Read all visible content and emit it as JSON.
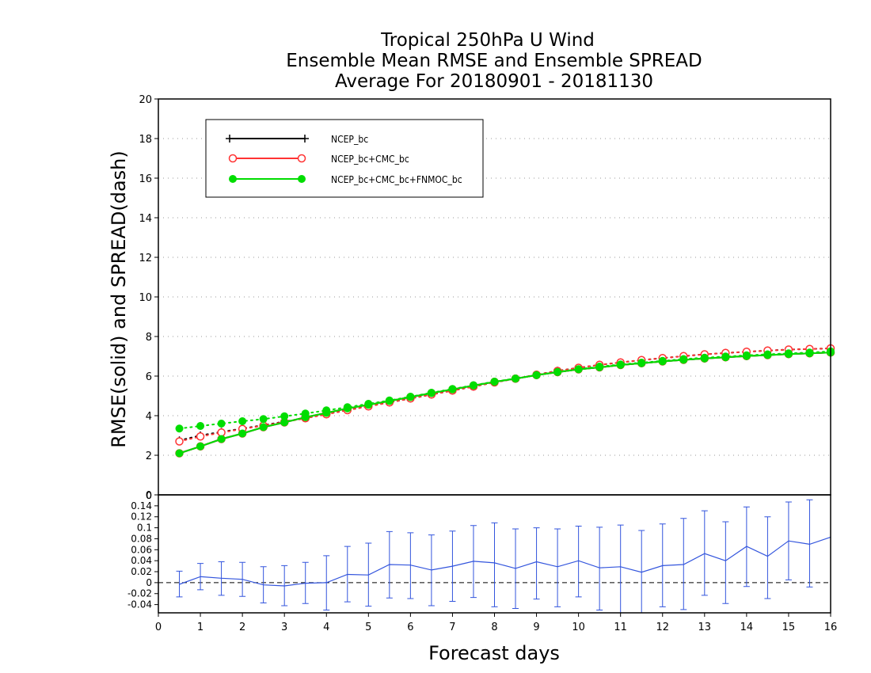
{
  "chart_data": [
    {
      "type": "line",
      "title": [
        "Tropical 250hPa U Wind",
        "Ensemble Mean RMSE and Ensemble SPREAD",
        "Average For 20180901 - 20181130"
      ],
      "ylabel": "RMSE(solid)  and  SPREAD(dash)",
      "xlim": [
        0,
        16
      ],
      "ylim": [
        0,
        20
      ],
      "yticks": [
        0,
        2,
        4,
        6,
        8,
        10,
        12,
        14,
        16,
        18,
        20
      ],
      "grid": true,
      "legend_position": "top-left",
      "x": [
        0.5,
        1,
        1.5,
        2,
        2.5,
        3,
        3.5,
        4,
        4.5,
        5,
        5.5,
        6,
        6.5,
        7,
        7.5,
        8,
        8.5,
        9,
        9.5,
        10,
        10.5,
        11,
        11.5,
        12,
        12.5,
        13,
        13.5,
        14,
        14.5,
        15,
        15.5,
        16
      ],
      "series": [
        {
          "name": "NCEP_bc",
          "color": "#000000",
          "marker": "plus",
          "rmse": [
            2.1,
            2.45,
            2.82,
            3.1,
            3.42,
            3.66,
            3.92,
            4.14,
            4.37,
            4.55,
            4.74,
            4.94,
            5.14,
            5.33,
            5.52,
            5.71,
            5.87,
            6.05,
            6.2,
            6.34,
            6.44,
            6.56,
            6.65,
            6.74,
            6.82,
            6.89,
            6.95,
            7.01,
            7.06,
            7.11,
            7.15,
            7.19
          ],
          "spread": [
            2.75,
            3.0,
            3.18,
            3.35,
            3.52,
            3.7,
            3.88,
            4.08,
            4.28,
            4.48,
            4.67,
            4.87,
            5.07,
            5.27,
            5.47,
            5.69,
            5.87,
            6.07,
            6.27,
            6.42,
            6.57,
            6.69,
            6.81,
            6.91,
            7.01,
            7.1,
            7.17,
            7.23,
            7.29,
            7.34,
            7.37,
            7.4
          ]
        },
        {
          "name": "NCEP_bc+CMC_bc",
          "color": "#ff3333",
          "marker": "open-circle",
          "rmse": [
            2.1,
            2.45,
            2.82,
            3.1,
            3.42,
            3.66,
            3.92,
            4.14,
            4.37,
            4.55,
            4.74,
            4.94,
            5.14,
            5.33,
            5.52,
            5.71,
            5.87,
            6.05,
            6.2,
            6.34,
            6.44,
            6.56,
            6.65,
            6.74,
            6.82,
            6.89,
            6.95,
            7.01,
            7.06,
            7.11,
            7.15,
            7.19
          ],
          "spread": [
            2.7,
            2.95,
            3.15,
            3.33,
            3.5,
            3.68,
            3.87,
            4.07,
            4.28,
            4.47,
            4.67,
            4.87,
            5.07,
            5.27,
            5.47,
            5.68,
            5.87,
            6.07,
            6.26,
            6.42,
            6.57,
            6.69,
            6.81,
            6.91,
            7.01,
            7.1,
            7.17,
            7.23,
            7.29,
            7.34,
            7.37,
            7.4
          ]
        },
        {
          "name": "NCEP_bc+CMC_bc+FNMOC_bc",
          "color": "#00dd00",
          "marker": "filled-circle",
          "rmse": [
            2.1,
            2.45,
            2.82,
            3.1,
            3.42,
            3.66,
            3.92,
            4.14,
            4.37,
            4.55,
            4.74,
            4.94,
            5.14,
            5.33,
            5.52,
            5.71,
            5.87,
            6.05,
            6.2,
            6.34,
            6.44,
            6.56,
            6.65,
            6.74,
            6.82,
            6.89,
            6.95,
            7.01,
            7.06,
            7.11,
            7.15,
            7.19
          ],
          "spread": [
            3.35,
            3.48,
            3.6,
            3.72,
            3.83,
            3.97,
            4.11,
            4.27,
            4.43,
            4.6,
            4.77,
            4.96,
            5.16,
            5.35,
            5.54,
            5.72,
            5.88,
            6.05,
            6.21,
            6.35,
            6.48,
            6.59,
            6.68,
            6.77,
            6.86,
            6.93,
            6.99,
            7.05,
            7.1,
            7.15,
            7.19,
            7.25
          ]
        }
      ]
    },
    {
      "type": "line",
      "title": "",
      "xlabel": "Forecast days",
      "xlim": [
        0,
        16
      ],
      "ylim": [
        -0.055,
        0.16
      ],
      "yticks": [
        -0.04,
        -0.02,
        0,
        0.02,
        0.04,
        0.06,
        0.08,
        0.1,
        0.12,
        0.14
      ],
      "ytick_labels": [
        "-0.04",
        "-0.02",
        "0",
        "0.02",
        "0.04",
        "0.06",
        "0.08",
        "0.1",
        "0.12",
        "0.14"
      ],
      "xticks": [
        0,
        1,
        2,
        3,
        4,
        5,
        6,
        7,
        8,
        9,
        10,
        11,
        12,
        13,
        14,
        15,
        16
      ],
      "zero_line": "dashed",
      "series": [
        {
          "color": "#3355dd",
          "x": [
            0.5,
            1,
            1.5,
            2,
            2.5,
            3,
            3.5,
            4,
            4.5,
            5,
            5.5,
            6,
            6.5,
            7,
            7.5,
            8,
            8.5,
            9,
            9.5,
            10,
            10.5,
            11,
            11.5,
            12,
            12.5,
            13,
            13.5,
            14,
            14.5,
            15,
            15.5,
            16
          ],
          "y": [
            -0.003,
            0.011,
            0.008,
            0.006,
            -0.004,
            -0.006,
            -0.001,
            0.0,
            0.015,
            0.014,
            0.033,
            0.032,
            0.023,
            0.03,
            0.039,
            0.036,
            0.026,
            0.038,
            0.029,
            0.04,
            0.027,
            0.029,
            0.019,
            0.031,
            0.033,
            0.053,
            0.04,
            0.066,
            0.048,
            0.076,
            0.07,
            0.083
          ],
          "err_low": [
            -0.026,
            -0.013,
            -0.023,
            -0.025,
            -0.037,
            -0.042,
            -0.038,
            -0.05,
            -0.035,
            -0.043,
            -0.028,
            -0.029,
            -0.042,
            -0.034,
            -0.027,
            -0.044,
            -0.047,
            -0.03,
            -0.044,
            -0.026,
            -0.05,
            -0.055,
            -0.055,
            -0.044,
            -0.049,
            -0.023,
            -0.038,
            -0.007,
            -0.029,
            0.005,
            -0.008,
            null
          ],
          "err_high": [
            0.021,
            0.035,
            0.038,
            0.037,
            0.029,
            0.031,
            0.037,
            0.049,
            0.066,
            0.072,
            0.093,
            0.091,
            0.087,
            0.094,
            0.104,
            0.109,
            0.098,
            0.1,
            0.098,
            0.103,
            0.101,
            0.105,
            0.095,
            0.107,
            0.117,
            0.131,
            0.111,
            0.138,
            0.12,
            0.147,
            0.151,
            null
          ]
        }
      ]
    }
  ]
}
